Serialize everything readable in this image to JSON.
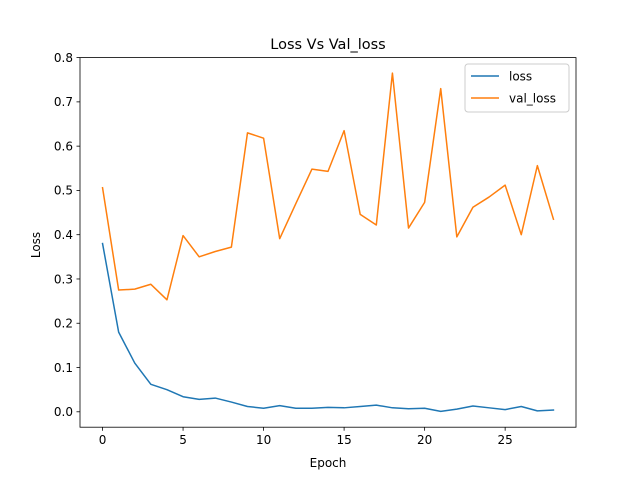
{
  "chart_data": {
    "type": "line",
    "title": "Loss Vs Val_loss",
    "xlabel": "Epoch",
    "ylabel": "Loss",
    "xlim": [
      -1.4,
      29.4
    ],
    "ylim": [
      -0.0348,
      0.8
    ],
    "xticks": [
      0,
      5,
      10,
      15,
      20,
      25
    ],
    "yticks": [
      0.0,
      0.1,
      0.2,
      0.3,
      0.4,
      0.5,
      0.6,
      0.7,
      0.8
    ],
    "ytick_labels": [
      "0.0",
      "0.1",
      "0.2",
      "0.3",
      "0.4",
      "0.5",
      "0.6",
      "0.7",
      "0.8"
    ],
    "grid": false,
    "legend_position": "top-right",
    "x": [
      0,
      1,
      2,
      3,
      4,
      5,
      6,
      7,
      8,
      9,
      10,
      11,
      12,
      13,
      14,
      15,
      16,
      17,
      18,
      19,
      20,
      21,
      22,
      23,
      24,
      25,
      26,
      27,
      28
    ],
    "series": [
      {
        "name": "loss",
        "color": "#1f77b4",
        "values": [
          0.38,
          0.18,
          0.11,
          0.062,
          0.05,
          0.034,
          0.028,
          0.031,
          0.022,
          0.012,
          0.008,
          0.014,
          0.008,
          0.008,
          0.01,
          0.009,
          0.012,
          0.015,
          0.009,
          0.007,
          0.008,
          0.001,
          0.006,
          0.013,
          0.009,
          0.005,
          0.012,
          0.002,
          0.004
        ]
      },
      {
        "name": "val_loss",
        "color": "#ff7f0e",
        "values": [
          0.506,
          0.275,
          0.277,
          0.288,
          0.253,
          0.398,
          0.35,
          0.362,
          0.372,
          0.63,
          0.618,
          0.391,
          0.47,
          0.548,
          0.543,
          0.635,
          0.446,
          0.422,
          0.765,
          0.415,
          0.473,
          0.73,
          0.395,
          0.462,
          0.485,
          0.512,
          0.4,
          0.556,
          0.435
        ]
      }
    ]
  }
}
